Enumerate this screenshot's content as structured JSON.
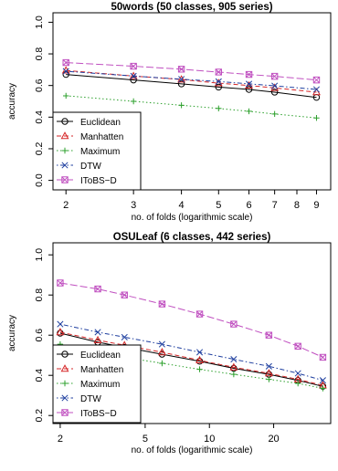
{
  "chart_data": [
    {
      "type": "line",
      "title": "50words (50 classes, 905 series)",
      "xlabel": "no. of folds (logarithmic scale)",
      "ylabel": "accuracy",
      "x_scale": "log",
      "xlim": [
        2,
        9
      ],
      "ylim": [
        0,
        1
      ],
      "x_ticks": [
        2,
        3,
        4,
        5,
        6,
        7,
        8,
        9
      ],
      "y_ticks": [
        "0.0",
        "0.2",
        "0.4",
        "0.6",
        "0.8",
        "1.0"
      ],
      "grid": false,
      "legend_position": "bottom-left",
      "x": [
        2,
        3,
        4,
        5,
        6,
        7,
        9
      ],
      "series": [
        {
          "name": "Euclidean",
          "color": "#000000",
          "marker": "circle",
          "dash": "solid",
          "values": [
            0.67,
            0.635,
            0.61,
            0.59,
            0.575,
            0.558,
            0.525
          ]
        },
        {
          "name": "Manhatten",
          "color": "#d62728",
          "marker": "triangle",
          "dash": "dashed",
          "values": [
            0.695,
            0.66,
            0.638,
            0.615,
            0.6,
            0.585,
            0.558
          ]
        },
        {
          "name": "Maximum",
          "color": "#2ca02c",
          "marker": "plus",
          "dash": "dotted",
          "values": [
            0.535,
            0.5,
            0.475,
            0.455,
            0.437,
            0.42,
            0.395
          ]
        },
        {
          "name": "DTW",
          "color": "#1f3f9f",
          "marker": "cross",
          "dash": "dotdash",
          "values": [
            0.69,
            0.66,
            0.64,
            0.625,
            0.61,
            0.598,
            0.575
          ]
        },
        {
          "name": "IToBS−D",
          "color": "#c050c0",
          "marker": "square-cross",
          "dash": "longdash",
          "values": [
            0.745,
            0.722,
            0.703,
            0.685,
            0.67,
            0.658,
            0.635
          ]
        }
      ]
    },
    {
      "type": "line",
      "title": "OSULeaf (6 classes, 442 series)",
      "xlabel": "no. of folds (logarithmic scale)",
      "ylabel": "accuracy",
      "x_scale": "log",
      "xlim": [
        2,
        32
      ],
      "ylim": [
        0.2,
        1
      ],
      "x_ticks": [
        2,
        5,
        10,
        20
      ],
      "y_ticks": [
        "0.2",
        "0.4",
        "0.6",
        "0.8",
        "1.0"
      ],
      "grid": false,
      "legend_position": "bottom-left",
      "x": [
        2,
        3,
        4,
        6,
        9,
        13,
        19,
        26,
        34
      ],
      "series": [
        {
          "name": "Euclidean",
          "color": "#000000",
          "marker": "circle",
          "dash": "solid",
          "values": [
            0.61,
            0.565,
            0.54,
            0.505,
            0.47,
            0.435,
            0.405,
            0.375,
            0.345
          ]
        },
        {
          "name": "Manhatten",
          "color": "#d62728",
          "marker": "triangle",
          "dash": "dashed",
          "values": [
            0.615,
            0.575,
            0.55,
            0.515,
            0.475,
            0.44,
            0.41,
            0.38,
            0.35
          ]
        },
        {
          "name": "Maximum",
          "color": "#2ca02c",
          "marker": "plus",
          "dash": "dotted",
          "values": [
            0.555,
            0.515,
            0.49,
            0.46,
            0.43,
            0.405,
            0.38,
            0.36,
            0.335
          ]
        },
        {
          "name": "DTW",
          "color": "#1f3f9f",
          "marker": "cross",
          "dash": "dotdash",
          "values": [
            0.655,
            0.615,
            0.59,
            0.555,
            0.515,
            0.48,
            0.445,
            0.41,
            0.375
          ]
        },
        {
          "name": "IToBS−D",
          "color": "#c050c0",
          "marker": "square-cross",
          "dash": "longdash",
          "values": [
            0.86,
            0.83,
            0.8,
            0.755,
            0.705,
            0.655,
            0.6,
            0.545,
            0.49
          ]
        }
      ]
    }
  ]
}
